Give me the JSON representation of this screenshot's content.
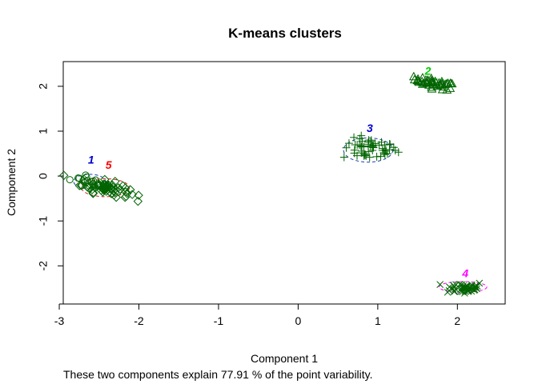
{
  "chart_data": {
    "type": "scatter",
    "title": "K-means clusters",
    "xlabel": "Component 1",
    "ylabel": "Component 2",
    "subtitle": "These two components explain 77.91 % of the point variability.",
    "xlim": [
      -2.95,
      2.6
    ],
    "ylim": [
      -2.85,
      2.55
    ],
    "xticks": [
      -3,
      -2,
      -1,
      0,
      1,
      2
    ],
    "yticks": [
      -2,
      -1,
      0,
      1,
      2
    ],
    "grid": false,
    "point_color": "#006400",
    "clusters": [
      {
        "label": "1",
        "label_color": "#0000CD",
        "symbol": "circle",
        "center": [
          -2.62,
          -0.12
        ],
        "spread": [
          0.12,
          0.09
        ],
        "count": 14,
        "ellipse": {
          "center": [
            -2.62,
            -0.12
          ],
          "radii": [
            0.2,
            0.16
          ],
          "color": "#1a3fb0"
        },
        "label_pos": [
          -2.6,
          0.28
        ]
      },
      {
        "label": "2",
        "label_color": "#00CC00",
        "symbol": "triangle",
        "center": [
          1.72,
          2.06
        ],
        "spread": [
          0.13,
          0.05
        ],
        "count": 45,
        "ellipse": {
          "center": [
            1.72,
            2.06
          ],
          "radii": [
            0.22,
            0.1
          ],
          "color": "#00CC00"
        },
        "label_pos": [
          1.63,
          2.26
        ]
      },
      {
        "label": "3",
        "label_color": "#0000CD",
        "symbol": "plus",
        "center": [
          0.9,
          0.6
        ],
        "spread": [
          0.17,
          0.12
        ],
        "count": 55,
        "ellipse": {
          "center": [
            0.88,
            0.58
          ],
          "radii": [
            0.31,
            0.27
          ],
          "color": "#1a3fb0"
        },
        "label_pos": [
          0.9,
          0.98
        ]
      },
      {
        "label": "4",
        "label_color": "#FF00FF",
        "symbol": "cross",
        "center": [
          2.08,
          -2.49
        ],
        "spread": [
          0.13,
          0.07
        ],
        "count": 45,
        "ellipse": {
          "center": [
            2.07,
            -2.47
          ],
          "radii": [
            0.3,
            0.12
          ],
          "color": "#FF00FF"
        },
        "label_pos": [
          2.1,
          -2.25
        ]
      },
      {
        "label": "5",
        "label_color": "#FF0000",
        "symbol": "diamond",
        "center": [
          -2.42,
          -0.26
        ],
        "spread": [
          0.15,
          0.08
        ],
        "count": 70,
        "ellipse": {
          "center": [
            -2.42,
            -0.26
          ],
          "radii": [
            0.3,
            0.2
          ],
          "color": "#CC2222"
        },
        "label_pos": [
          -2.38,
          0.16
        ]
      }
    ]
  }
}
